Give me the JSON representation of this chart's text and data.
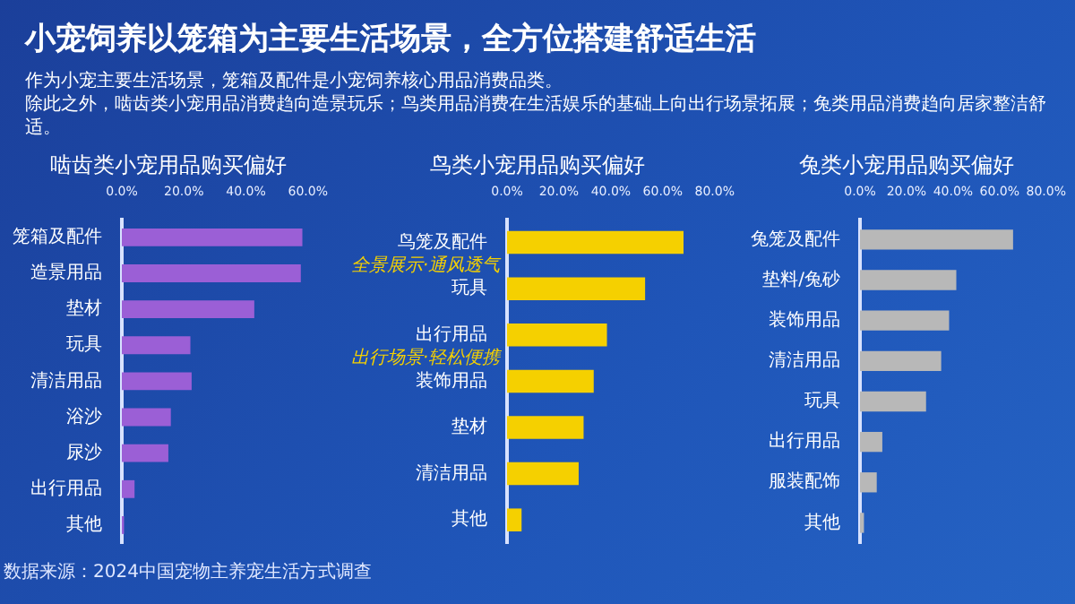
{
  "chart_data": [
    {
      "type": "other",
      "title": "小宠饲养以笼箱为主要生活场景，全方位搭建舒适生活",
      "subtitle": "作为小宠主要生活场景，笼箱及配件是小宠饲养核心用品消费品类。",
      "annotations": [
        "除此之外，啮齿类小宠用品消费趋向造景玩乐；鸟类用品消费在生活娱乐的基础上向出行场景拓展；兔类用品消费趋向居家整洁舒适。"
      ]
    },
    {
      "type": "bar",
      "orientation": "horizontal",
      "title": "啮齿类小宠用品购买偏好",
      "categories": [
        "笼箱及配件",
        "造景用品",
        "垫材",
        "玩具",
        "清洁用品",
        "浴沙",
        "尿沙",
        "出行用品",
        "其他"
      ],
      "values": [
        58.2,
        57.7,
        42.7,
        22.1,
        22.5,
        15.8,
        15.0,
        4.1,
        0.7
      ],
      "color": "#9b5fd6",
      "xlim": [
        0,
        60
      ],
      "xticks": [
        {
          "value": 0,
          "label": "0.0%"
        },
        {
          "value": 20,
          "label": "20.0%"
        },
        {
          "value": 40,
          "label": "40.0%"
        },
        {
          "value": 60,
          "label": "60.0%"
        }
      ],
      "annotations": [
        "数据来源：2024中国宠物主养宠生活方式调查"
      ]
    },
    {
      "type": "bar",
      "orientation": "horizontal",
      "title": "鸟类小宠用品购买偏好",
      "categories": [
        "鸟笼及配件",
        "玩具",
        "出行用品",
        "装饰用品",
        "垫材",
        "清洁用品",
        "其他"
      ],
      "values": [
        68.0,
        53.2,
        38.5,
        33.4,
        29.5,
        27.6,
        5.6
      ],
      "color": "#f5d000",
      "xlim": [
        0,
        80
      ],
      "xticks": [
        {
          "value": 0,
          "label": "0.0%"
        },
        {
          "value": 20,
          "label": "20.0%"
        },
        {
          "value": 40,
          "label": "40.0%"
        },
        {
          "value": 60,
          "label": "60.0%"
        },
        {
          "value": 80,
          "label": "80.0%"
        }
      ],
      "annotations": [
        "全景展示·通风透气",
        "出行场景·轻松便携"
      ]
    },
    {
      "type": "bar",
      "orientation": "horizontal",
      "title": "兔类小宠用品购买偏好",
      "categories": [
        "兔笼及配件",
        "垫料/兔砂",
        "装饰用品",
        "清洁用品",
        "玩具",
        "出行用品",
        "服装配饰",
        "其他"
      ],
      "values": [
        65.8,
        41.4,
        38.3,
        34.9,
        28.4,
        9.6,
        7.2,
        1.7
      ],
      "color": "#b8b8b8",
      "xlim": [
        0,
        80
      ],
      "xticks": [
        {
          "value": 0,
          "label": "0.0%"
        },
        {
          "value": 20,
          "label": "20.0%"
        },
        {
          "value": 40,
          "label": "40.0%"
        },
        {
          "value": 60,
          "label": "60.0%"
        },
        {
          "value": 80,
          "label": "80.0%"
        }
      ]
    }
  ]
}
